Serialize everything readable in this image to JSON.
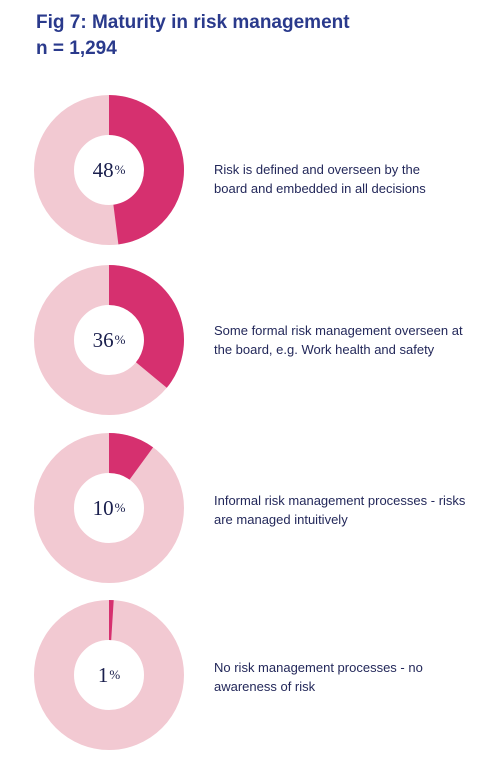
{
  "title": "Fig 7: Maturity in risk management",
  "subtitle": "n = 1,294",
  "colors": {
    "filled": "#d6306f",
    "remainder": "#f2c9d2",
    "text": "#23285a",
    "title": "#2a3a8c"
  },
  "chart_data": {
    "type": "pie",
    "title": "Fig 7: Maturity in risk management",
    "subtitle": "n = 1,294",
    "unit": "%",
    "items": [
      {
        "label_line1": "Risk is defined and overseen by the",
        "label_line2": "board and embedded in all decisions",
        "value": 48
      },
      {
        "label_line1": "Some formal risk management overseen at",
        "label_line2": "the board, e.g. Work health and safety",
        "value": 36
      },
      {
        "label_line1": "Informal risk management processes - risks",
        "label_line2": "are managed intuitively",
        "value": 10
      },
      {
        "label_line1": "No risk management processes - no",
        "label_line2": "awareness of risk",
        "value": 1
      }
    ]
  }
}
